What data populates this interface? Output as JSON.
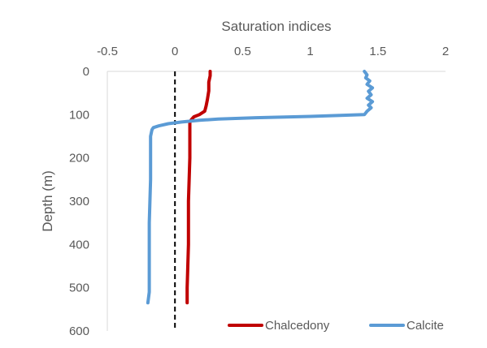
{
  "chart_data": {
    "type": "line",
    "title": "",
    "xlabel": "Saturation indices",
    "ylabel": "Depth (m)",
    "xlim": [
      -0.5,
      2
    ],
    "ylim": [
      0,
      600
    ],
    "y_inverted": true,
    "x_axis_position": "top",
    "x_ticks": [
      "-0.5",
      "0",
      "0.5",
      "1",
      "1.5",
      "2"
    ],
    "y_ticks": [
      "0",
      "100",
      "200",
      "300",
      "400",
      "500",
      "600"
    ],
    "x_tick_values": [
      -0.5,
      0,
      0.5,
      1,
      1.5,
      2
    ],
    "y_tick_values": [
      0,
      100,
      200,
      300,
      400,
      500,
      600
    ],
    "grid": false,
    "legend_position": "bottom-right",
    "reference_line": {
      "x": 0,
      "style": "dashed",
      "color": "#000000"
    },
    "series": [
      {
        "name": "Chalcedony",
        "color": "#C00000",
        "points": [
          [
            0.26,
            0
          ],
          [
            0.26,
            10
          ],
          [
            0.25,
            25
          ],
          [
            0.25,
            45
          ],
          [
            0.24,
            65
          ],
          [
            0.23,
            80
          ],
          [
            0.22,
            92
          ],
          [
            0.18,
            100
          ],
          [
            0.14,
            105
          ],
          [
            0.12,
            112
          ],
          [
            0.11,
            118
          ],
          [
            0.11,
            125
          ],
          [
            0.11,
            140
          ],
          [
            0.11,
            200
          ],
          [
            0.1,
            300
          ],
          [
            0.1,
            400
          ],
          [
            0.09,
            500
          ],
          [
            0.09,
            535
          ]
        ]
      },
      {
        "name": "Calcite",
        "color": "#5B9BD5",
        "points": [
          [
            1.4,
            0
          ],
          [
            1.42,
            8
          ],
          [
            1.41,
            15
          ],
          [
            1.44,
            22
          ],
          [
            1.42,
            30
          ],
          [
            1.46,
            38
          ],
          [
            1.43,
            46
          ],
          [
            1.45,
            54
          ],
          [
            1.42,
            62
          ],
          [
            1.46,
            70
          ],
          [
            1.43,
            78
          ],
          [
            1.45,
            84
          ],
          [
            1.42,
            92
          ],
          [
            1.4,
            100
          ],
          [
            1.0,
            104
          ],
          [
            0.6,
            107
          ],
          [
            0.32,
            110
          ],
          [
            0.18,
            113
          ],
          [
            0.05,
            117
          ],
          [
            -0.05,
            121
          ],
          [
            -0.12,
            126
          ],
          [
            -0.16,
            130
          ],
          [
            -0.17,
            135
          ],
          [
            -0.18,
            150
          ],
          [
            -0.18,
            250
          ],
          [
            -0.19,
            350
          ],
          [
            -0.19,
            450
          ],
          [
            -0.19,
            510
          ],
          [
            -0.2,
            535
          ]
        ]
      }
    ]
  }
}
